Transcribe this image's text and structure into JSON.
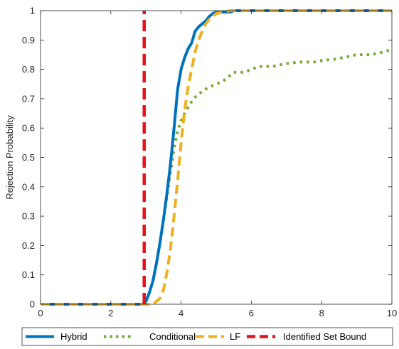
{
  "chart_data": {
    "type": "line",
    "title": "",
    "xlabel": "",
    "ylabel": "Rejection Probability",
    "xlim": [
      0,
      10
    ],
    "ylim": [
      0,
      1
    ],
    "xticks": [
      0,
      2,
      4,
      6,
      8,
      10
    ],
    "xtick_labels": [
      "0",
      "2",
      "4",
      "6",
      "8",
      "10"
    ],
    "yticks": [
      0,
      0.1,
      0.2,
      0.3,
      0.4,
      0.5,
      0.6,
      0.7,
      0.8,
      0.9,
      1
    ],
    "ytick_labels": [
      "0",
      "0.1",
      "0.2",
      "0.3",
      "0.4",
      "0.5",
      "0.6",
      "0.7",
      "0.8",
      "0.9",
      "1"
    ],
    "grid": false,
    "legend_position": "bottom-outside",
    "series": [
      {
        "name": "Hybrid",
        "color": "#0072BD",
        "style": "solid",
        "x": [
          0,
          2.9,
          3.0,
          3.1,
          3.2,
          3.3,
          3.4,
          3.5,
          3.6,
          3.7,
          3.8,
          3.9,
          4.0,
          4.1,
          4.2,
          4.3,
          4.4,
          4.5,
          4.6,
          4.7,
          4.8,
          4.9,
          5.0,
          5.2,
          5.4,
          5.5,
          5.6,
          6.0,
          8.0,
          10.0
        ],
        "y": [
          0,
          0,
          0.01,
          0.04,
          0.08,
          0.14,
          0.21,
          0.29,
          0.38,
          0.48,
          0.6,
          0.73,
          0.8,
          0.84,
          0.87,
          0.89,
          0.93,
          0.945,
          0.955,
          0.965,
          0.98,
          0.99,
          0.995,
          0.995,
          0.995,
          1.0,
          1.0,
          1.0,
          1.0,
          1.0
        ]
      },
      {
        "name": "Conditional",
        "color": "#77AC30",
        "style": "dotted",
        "x": [
          0,
          2.9,
          3.0,
          3.1,
          3.2,
          3.3,
          3.4,
          3.5,
          3.6,
          3.7,
          3.8,
          3.9,
          4.0,
          4.1,
          4.2,
          4.3,
          4.4,
          4.5,
          4.6,
          4.8,
          5.0,
          5.2,
          5.4,
          5.5,
          5.8,
          6.0,
          6.2,
          6.6,
          7.0,
          7.4,
          7.8,
          8.0,
          8.4,
          8.8,
          9.0,
          9.4,
          9.8,
          10.0
        ],
        "y": [
          0,
          0,
          0.01,
          0.04,
          0.08,
          0.14,
          0.21,
          0.29,
          0.37,
          0.45,
          0.53,
          0.59,
          0.625,
          0.65,
          0.67,
          0.69,
          0.705,
          0.715,
          0.725,
          0.74,
          0.75,
          0.76,
          0.78,
          0.79,
          0.79,
          0.8,
          0.81,
          0.81,
          0.82,
          0.825,
          0.825,
          0.83,
          0.835,
          0.845,
          0.85,
          0.85,
          0.86,
          0.87
        ]
      },
      {
        "name": "LF",
        "color": "#EDB120",
        "style": "dashed",
        "x": [
          0,
          2.9,
          3.0,
          3.2,
          3.4,
          3.5,
          3.6,
          3.7,
          3.8,
          3.9,
          4.0,
          4.1,
          4.2,
          4.3,
          4.4,
          4.5,
          4.6,
          4.7,
          4.8,
          4.9,
          5.0,
          5.2,
          5.4,
          5.6,
          6.0,
          8.0,
          10.0
        ],
        "y": [
          0,
          0,
          0.0,
          0.0,
          0.02,
          0.05,
          0.11,
          0.19,
          0.3,
          0.42,
          0.55,
          0.66,
          0.74,
          0.8,
          0.86,
          0.9,
          0.93,
          0.955,
          0.97,
          0.98,
          0.99,
          0.995,
          1.0,
          1.0,
          1.0,
          1.0,
          1.0
        ]
      },
      {
        "name": "Identified Set Bound",
        "color": "#E8101A",
        "style": "dashed",
        "x": [
          2.95,
          2.95
        ],
        "y": [
          0,
          1
        ]
      }
    ]
  }
}
